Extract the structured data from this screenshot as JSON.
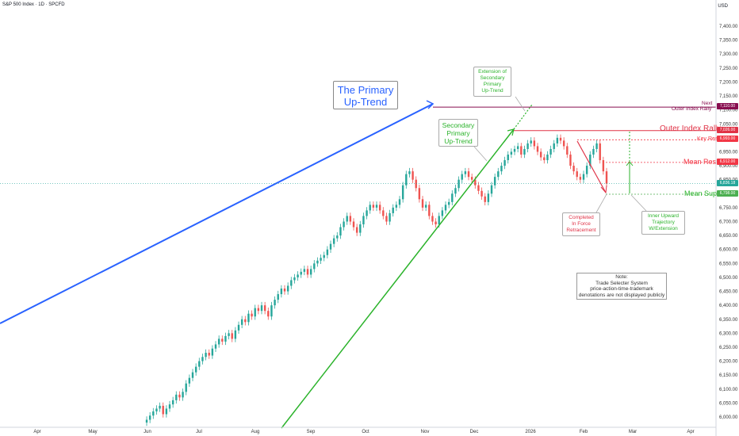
{
  "header": {
    "symbol_line": "S&P 500 Index · 1D · SPCFD",
    "currency": "USD"
  },
  "chart_data": {
    "type": "candlestick",
    "title": "S&P 500 Index · 1D · SPCFD",
    "ylabel": "USD",
    "ylim": [
      5970,
      7440
    ],
    "y_ticks": [
      "7,400.00",
      "7,350.00",
      "7,300.00",
      "7,250.00",
      "7,200.00",
      "7,150.00",
      "7,100.00",
      "7,050.00",
      "7,000.00",
      "6,950.00",
      "6,900.00",
      "6,850.00",
      "6,800.00",
      "6,750.00",
      "6,700.00",
      "6,650.00",
      "6,600.00",
      "6,550.00",
      "6,500.00",
      "6,450.00",
      "6,400.00",
      "6,350.00",
      "6,300.00",
      "6,250.00",
      "6,200.00",
      "6,150.00",
      "6,100.00",
      "6,050.00",
      "6,000.00"
    ],
    "x_ticks": [
      "Apr",
      "May",
      "Jun",
      "Jul",
      "Aug",
      "Sep",
      "Oct",
      "Nov",
      "Dec",
      "2026",
      "Feb",
      "Mar",
      "Apr"
    ],
    "price_levels": [
      {
        "name": "Next Outer Index Rally",
        "value": 7110.0,
        "label": "7,110.00",
        "color": "#880e4f"
      },
      {
        "name": "Outer Index Rally",
        "value": 7026.0,
        "label": "7,026.00",
        "color": "#e03347"
      },
      {
        "name": "Key Res",
        "value": 6993.0,
        "label": "6,993.00",
        "color": "#f23645"
      },
      {
        "name": "Current",
        "value": 6836.18,
        "label": "6,836.18",
        "color": "#26a69a"
      },
      {
        "name": "Mean Res",
        "value": 6912.0,
        "label": "6,912.00",
        "color": "#f23645"
      },
      {
        "name": "Mean Sup",
        "value": 6798.0,
        "label": "6,798.00",
        "color": "#4caf50"
      }
    ],
    "annotations": {
      "primary": "The Primary\nUp-Trend",
      "secondary": "Secondary\nPrimary\nUp-Trend",
      "extension": "Extension of\nSecondary\nPrimary\nUp-Trend",
      "completed": "Completed\nIn Force\nRetracement",
      "inner": "Inner Upward\nTrajectory\nW/Extension",
      "note": "Note:\nTrade Selecter System\nprice-action-time-trademark\ndenotations are not displayed publicly"
    },
    "level_text": {
      "next": "Next",
      "outer_next": "Outer Index Rally",
      "outer": "Outer Index Rally",
      "key_res": "Key Res",
      "mean_res": "Mean Res",
      "mean_sup": "Mean Sup"
    },
    "colors": {
      "up": "#26a69a",
      "down": "#ef5350",
      "primary_trend": "#2962ff",
      "secondary_trend": "#2bb32b"
    },
    "candles_approx_closes": [
      5990,
      6005,
      6020,
      6030,
      6040,
      6010,
      6030,
      6045,
      6060,
      6080,
      6070,
      6090,
      6120,
      6140,
      6160,
      6180,
      6200,
      6215,
      6230,
      6220,
      6245,
      6260,
      6280,
      6270,
      6290,
      6300,
      6280,
      6310,
      6330,
      6350,
      6340,
      6370,
      6360,
      6390,
      6380,
      6400,
      6380,
      6360,
      6400,
      6420,
      6440,
      6460,
      6450,
      6470,
      6490,
      6500,
      6510,
      6520,
      6530,
      6510,
      6530,
      6550,
      6560,
      6570,
      6580,
      6600,
      6620,
      6640,
      6650,
      6680,
      6700,
      6720,
      6700,
      6680,
      6660,
      6690,
      6720,
      6740,
      6760,
      6750,
      6760,
      6740,
      6720,
      6700,
      6730,
      6750,
      6760,
      6780,
      6830,
      6870,
      6880,
      6850,
      6820,
      6780,
      6750,
      6760,
      6720,
      6700,
      6690,
      6720,
      6740,
      6760,
      6770,
      6800,
      6820,
      6850,
      6870,
      6880,
      6860,
      6850,
      6830,
      6810,
      6790,
      6770,
      6800,
      6830,
      6860,
      6880,
      6900,
      6920,
      6940,
      6950,
      6960,
      6970,
      6940,
      6960,
      6980,
      6990,
      6970,
      6950,
      6930,
      6920,
      6940,
      6960,
      6980,
      7000,
      6990,
      6970,
      6940,
      6900,
      6880,
      6860,
      6850,
      6870,
      6900,
      6940,
      6960,
      6980,
      6920,
      6880,
      6836
    ]
  }
}
